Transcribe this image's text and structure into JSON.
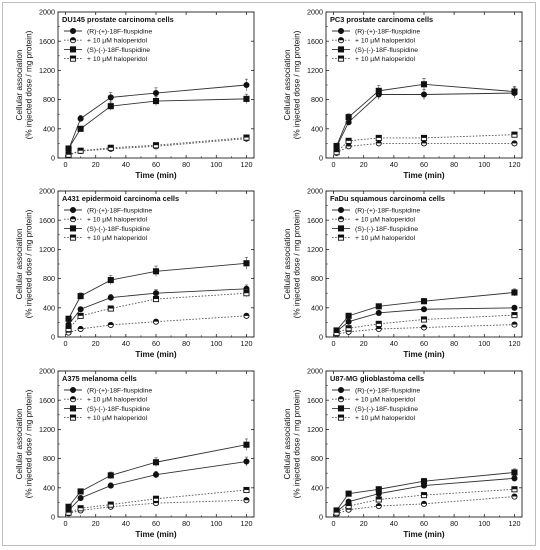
{
  "chart_data": [
    {
      "type": "line",
      "title": "DU145 prostate carcinoma cells",
      "xlabel": "Time (min)",
      "ylabel": [
        "Cellular association",
        "(% injected dose / mg protein)"
      ],
      "xlim": [
        -5,
        125
      ],
      "ylim": [
        0,
        2000
      ],
      "xticks": [
        0,
        20,
        40,
        60,
        80,
        100,
        120
      ],
      "yticks": [
        0,
        400,
        800,
        1200,
        1600,
        2000
      ],
      "x": [
        2,
        10,
        30,
        60,
        120
      ],
      "series": [
        {
          "name": "(R)-(+)-18F-fluspidine",
          "values": [
            115,
            540,
            830,
            890,
            1000
          ],
          "marker": "circle",
          "dash": false
        },
        {
          "name": "+ 10 µM haloperidol",
          "values": [
            40,
            95,
            125,
            160,
            265
          ],
          "marker": "circle-half",
          "dash": true
        },
        {
          "name": "(S)-(-)-18F-fluspidine",
          "values": [
            130,
            400,
            710,
            780,
            810
          ],
          "marker": "square",
          "dash": false
        },
        {
          "name": "+ 10 µM haloperidol",
          "values": [
            45,
            100,
            140,
            175,
            280
          ],
          "marker": "square-half",
          "dash": true
        }
      ]
    },
    {
      "type": "line",
      "title": "PC3 prostate carcinoma cells",
      "xlabel": "Time (min)",
      "ylabel": [
        "Cellular association",
        "(% injected dose / mg protein)"
      ],
      "xlim": [
        -5,
        125
      ],
      "ylim": [
        0,
        2000
      ],
      "xticks": [
        0,
        20,
        40,
        60,
        80,
        100,
        120
      ],
      "yticks": [
        0,
        400,
        800,
        1200,
        1600,
        2000
      ],
      "x": [
        2,
        10,
        30,
        60,
        120
      ],
      "series": [
        {
          "name": "(R)-(+)-18F-fluspidine",
          "values": [
            150,
            490,
            870,
            870,
            890
          ],
          "marker": "circle",
          "dash": false
        },
        {
          "name": "+ 10 µM haloperidol",
          "values": [
            70,
            160,
            200,
            200,
            200
          ],
          "marker": "circle-half",
          "dash": true
        },
        {
          "name": "(S)-(-)-18F-fluspidine",
          "values": [
            165,
            560,
            920,
            1010,
            910
          ],
          "marker": "square",
          "dash": false
        },
        {
          "name": "+ 10 µM haloperidol",
          "values": [
            80,
            235,
            275,
            275,
            320
          ],
          "marker": "square-half",
          "dash": true
        }
      ]
    },
    {
      "type": "line",
      "title": "A431 epidermoid carcinoma cells",
      "xlabel": "Time (min)",
      "ylabel": [
        "Cellular association",
        "(% injected dose / mg protein)"
      ],
      "xlim": [
        -5,
        125
      ],
      "ylim": [
        0,
        2000
      ],
      "xticks": [
        0,
        20,
        40,
        60,
        80,
        100,
        120
      ],
      "yticks": [
        0,
        400,
        800,
        1200,
        1600,
        2000
      ],
      "x": [
        2,
        10,
        30,
        60,
        120
      ],
      "series": [
        {
          "name": "(R)-(+)-18F-fluspidine",
          "values": [
            170,
            380,
            540,
            600,
            660
          ],
          "marker": "circle",
          "dash": false
        },
        {
          "name": "+ 10 µM haloperidol",
          "values": [
            60,
            110,
            165,
            210,
            290
          ],
          "marker": "circle-half",
          "dash": true
        },
        {
          "name": "(S)-(-)-18F-fluspidine",
          "values": [
            250,
            560,
            780,
            900,
            1010
          ],
          "marker": "square",
          "dash": false
        },
        {
          "name": "+ 10 µM haloperidol",
          "values": [
            110,
            290,
            390,
            520,
            600
          ],
          "marker": "square-half",
          "dash": true
        }
      ]
    },
    {
      "type": "line",
      "title": "FaDu squamous carcinoma cells",
      "xlabel": "Time (min)",
      "ylabel": [
        "Cellular association",
        "(% injected dose / mg protein)"
      ],
      "xlim": [
        -5,
        125
      ],
      "ylim": [
        0,
        2000
      ],
      "xticks": [
        0,
        20,
        40,
        60,
        80,
        100,
        120
      ],
      "yticks": [
        0,
        400,
        800,
        1200,
        1600,
        2000
      ],
      "x": [
        2,
        10,
        30,
        60,
        120
      ],
      "series": [
        {
          "name": "(R)-(+)-18F-fluspidine",
          "values": [
            75,
            210,
            330,
            380,
            400
          ],
          "marker": "circle",
          "dash": false
        },
        {
          "name": "+ 10 µM haloperidol",
          "values": [
            40,
            70,
            110,
            130,
            170
          ],
          "marker": "circle-half",
          "dash": true
        },
        {
          "name": "(S)-(-)-18F-fluspidine",
          "values": [
            90,
            290,
            420,
            490,
            610
          ],
          "marker": "square",
          "dash": false
        },
        {
          "name": "+ 10 µM haloperidol",
          "values": [
            55,
            120,
            180,
            240,
            300
          ],
          "marker": "square-half",
          "dash": true
        }
      ]
    },
    {
      "type": "line",
      "title": "A375 melanoma cells",
      "xlabel": "Time (min)",
      "ylabel": [
        "Cellular association",
        "(% injected dose / mg protein)"
      ],
      "xlim": [
        -5,
        125
      ],
      "ylim": [
        0,
        2000
      ],
      "xticks": [
        0,
        20,
        40,
        60,
        80,
        100,
        120
      ],
      "yticks": [
        0,
        400,
        800,
        1200,
        1600,
        2000
      ],
      "x": [
        2,
        10,
        30,
        60,
        120
      ],
      "series": [
        {
          "name": "(R)-(+)-18F-fluspidine",
          "values": [
            90,
            260,
            430,
            580,
            760
          ],
          "marker": "circle",
          "dash": false
        },
        {
          "name": "+ 10 µM haloperidol",
          "values": [
            50,
            90,
            140,
            190,
            230
          ],
          "marker": "circle-half",
          "dash": true
        },
        {
          "name": "(S)-(-)-18F-fluspidine",
          "values": [
            140,
            350,
            570,
            750,
            990
          ],
          "marker": "square",
          "dash": false
        },
        {
          "name": "+ 10 µM haloperidol",
          "values": [
            60,
            120,
            170,
            250,
            370
          ],
          "marker": "square-half",
          "dash": true
        }
      ]
    },
    {
      "type": "line",
      "title": "U87-MG glioblastoma cells",
      "xlabel": "Time (min)",
      "ylabel": [
        "Cellular association",
        "(% injected dose / mg protein)"
      ],
      "xlim": [
        -5,
        125
      ],
      "ylim": [
        0,
        2000
      ],
      "xticks": [
        0,
        20,
        40,
        60,
        80,
        100,
        120
      ],
      "yticks": [
        0,
        400,
        800,
        1200,
        1600,
        2000
      ],
      "x": [
        2,
        10,
        30,
        60,
        120
      ],
      "series": [
        {
          "name": "(R)-(+)-18F-fluspidine",
          "values": [
            70,
            210,
            320,
            430,
            530
          ],
          "marker": "circle",
          "dash": false
        },
        {
          "name": "+ 10 µM haloperidol",
          "values": [
            40,
            100,
            150,
            180,
            280
          ],
          "marker": "circle-half",
          "dash": true
        },
        {
          "name": "(S)-(-)-18F-fluspidine",
          "values": [
            90,
            320,
            380,
            490,
            610
          ],
          "marker": "square",
          "dash": false
        },
        {
          "name": "+ 10 µM haloperidol",
          "values": [
            60,
            150,
            240,
            300,
            380
          ],
          "marker": "square-half",
          "dash": true
        }
      ]
    }
  ]
}
